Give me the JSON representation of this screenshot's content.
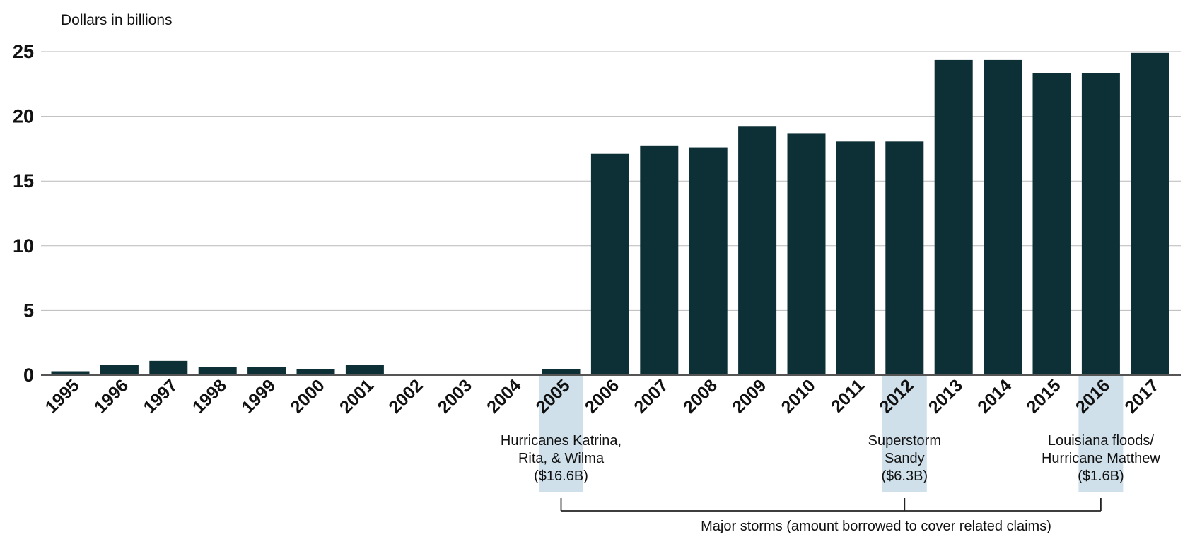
{
  "chart_data": {
    "type": "bar",
    "ylabel": "Dollars in billions",
    "ylim": [
      0,
      25
    ],
    "yticks": [
      0,
      5,
      10,
      15,
      20,
      25
    ],
    "grid": true,
    "categories": [
      "1995",
      "1996",
      "1997",
      "1998",
      "1999",
      "2000",
      "2001",
      "2002",
      "2003",
      "2004",
      "2005",
      "2006",
      "2007",
      "2008",
      "2009",
      "2010",
      "2011",
      "2012",
      "2013",
      "2014",
      "2015",
      "2016",
      "2017"
    ],
    "values": [
      0.3,
      0.8,
      1.1,
      0.6,
      0.6,
      0.45,
      0.8,
      0,
      0,
      0,
      0.45,
      17.1,
      17.75,
      17.6,
      19.2,
      18.7,
      18.05,
      18.05,
      24.35,
      24.35,
      23.35,
      23.35,
      24.9
    ],
    "highlights": [
      {
        "category": "2005",
        "lines": [
          "Hurricanes Katrina,",
          "Rita, & Wilma",
          "($16.6B)"
        ]
      },
      {
        "category": "2012",
        "lines": [
          "Superstorm",
          "Sandy",
          "($6.3B)"
        ]
      },
      {
        "category": "2016",
        "lines": [
          "Louisiana floods/",
          "Hurricane Matthew",
          "($1.6B)"
        ]
      }
    ],
    "bracket_label": "Major storms (amount borrowed to cover related claims)",
    "colors": {
      "bar": "#0d3036",
      "highlight": "#cfe0ea",
      "grid": "#b9b9b9"
    }
  }
}
